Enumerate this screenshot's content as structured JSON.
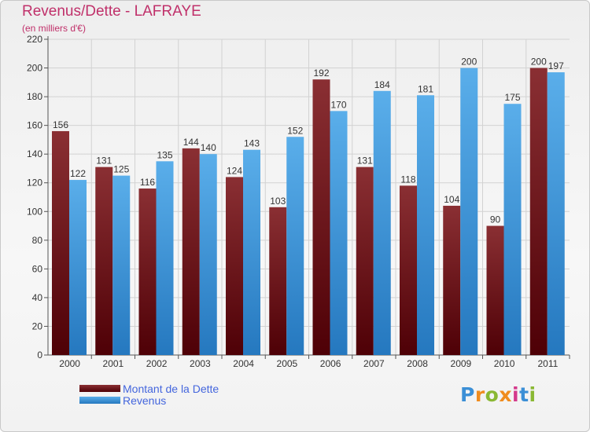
{
  "title": "Revenus/Dette - LAFRAYE",
  "subtitle": "(en milliers d'€)",
  "logo": {
    "text": "Proxiti",
    "letter_colors": [
      "#3b8fd6",
      "#f08c1e",
      "#8ab833",
      "#f08c1e",
      "#d43a8c",
      "#3b8fd6",
      "#8ab833"
    ]
  },
  "chart_data": {
    "type": "bar",
    "categories": [
      "2000",
      "2001",
      "2002",
      "2003",
      "2004",
      "2005",
      "2006",
      "2007",
      "2008",
      "2009",
      "2010",
      "2011"
    ],
    "series": [
      {
        "name": "Montant de la Dette",
        "values": [
          156,
          131,
          116,
          144,
          124,
          103,
          192,
          131,
          118,
          104,
          90,
          200
        ],
        "color": "#7a1f24"
      },
      {
        "name": "Revenus",
        "values": [
          122,
          125,
          135,
          140,
          143,
          152,
          170,
          184,
          181,
          200,
          175,
          197
        ],
        "color": "#4da3e4"
      }
    ],
    "y_ticks": [
      0,
      20,
      40,
      60,
      80,
      100,
      120,
      140,
      160,
      180,
      200,
      220
    ],
    "ylim": [
      0,
      220
    ],
    "grid": true,
    "legend_position": "bottom-left"
  }
}
